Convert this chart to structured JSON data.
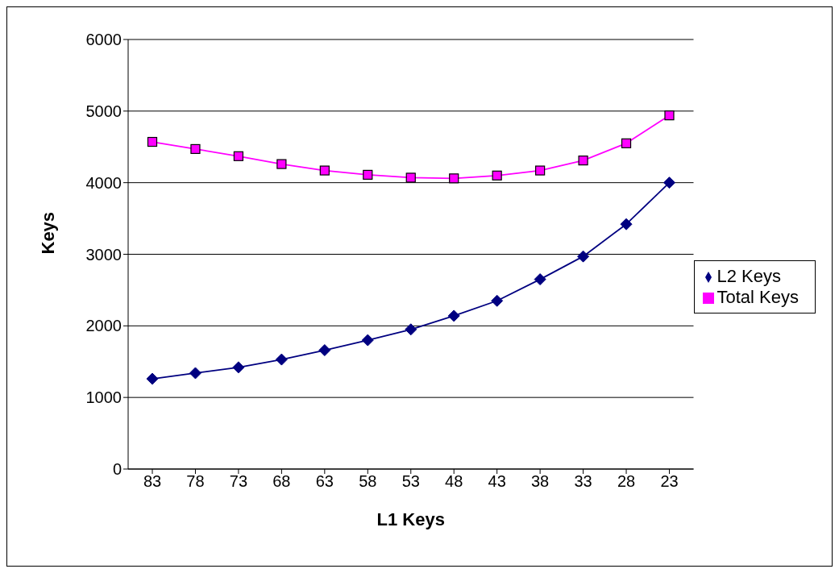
{
  "chart_data": {
    "type": "line",
    "xlabel": "L1 Keys",
    "ylabel": "Keys",
    "categories": [
      "83",
      "78",
      "73",
      "68",
      "63",
      "58",
      "53",
      "48",
      "43",
      "38",
      "33",
      "28",
      "23"
    ],
    "series": [
      {
        "name": "L2 Keys",
        "color": "#000080",
        "marker": "diamond",
        "values": [
          1260,
          1340,
          1420,
          1530,
          1660,
          1800,
          1950,
          2140,
          2350,
          2650,
          2970,
          3420,
          4000
        ]
      },
      {
        "name": "Total Keys",
        "color": "#ff00ff",
        "marker": "square",
        "values": [
          4570,
          4470,
          4370,
          4260,
          4170,
          4110,
          4070,
          4060,
          4100,
          4170,
          4310,
          4550,
          4940
        ]
      }
    ],
    "ylim": [
      0,
      6000
    ],
    "yticks": [
      0,
      1000,
      2000,
      3000,
      4000,
      5000,
      6000
    ],
    "grid": "y",
    "legend": "right",
    "line_style": "solid"
  }
}
